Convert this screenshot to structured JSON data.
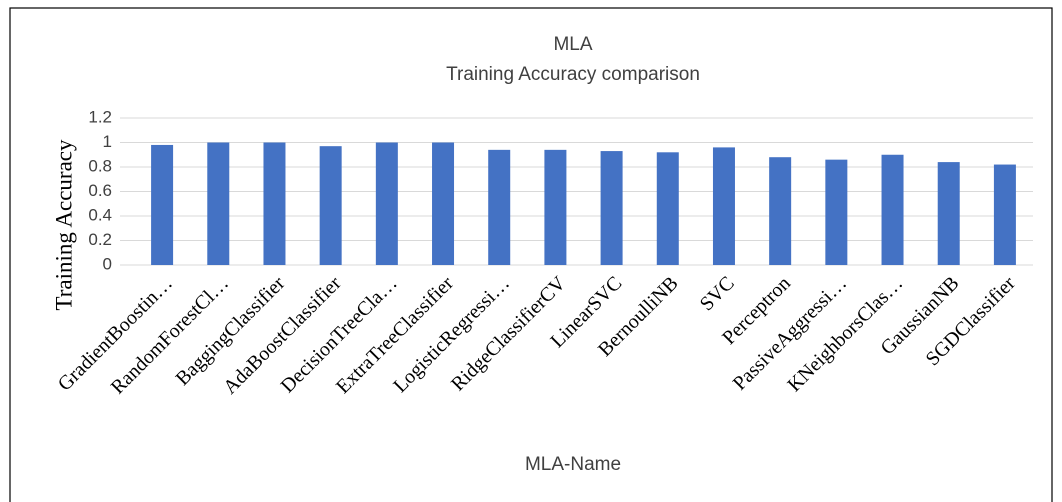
{
  "chart_data": {
    "type": "bar",
    "title": "MLA",
    "subtitle": "Training Accuracy comparison",
    "x_label": "MLA-Name",
    "y_label": "Training Accuracy",
    "categories": [
      "GradientBoostin…",
      "RandomForestCl…",
      "BaggingClassifier",
      "AdaBoostClassifier",
      "DecisionTreeCla…",
      "ExtraTreeClassifier",
      "LogisticRegressi…",
      "RidgeClassifierCV",
      "LinearSVC",
      "BernoulliNB",
      "SVC",
      "Perceptron",
      "PassiveAggressi…",
      "KNeighborsClas…",
      "GaussianNB",
      "SGDClassifier"
    ],
    "values": [
      0.98,
      1,
      1,
      0.97,
      1,
      1,
      0.94,
      0.94,
      0.93,
      0.92,
      0.96,
      0.88,
      0.86,
      0.9,
      0.84,
      0.82
    ],
    "color": "#4472c4",
    "ylim": [
      0,
      1.2
    ],
    "yticks": [
      0,
      0.2,
      0.4,
      0.6,
      0.8,
      1,
      1.2
    ],
    "grid": true
  }
}
